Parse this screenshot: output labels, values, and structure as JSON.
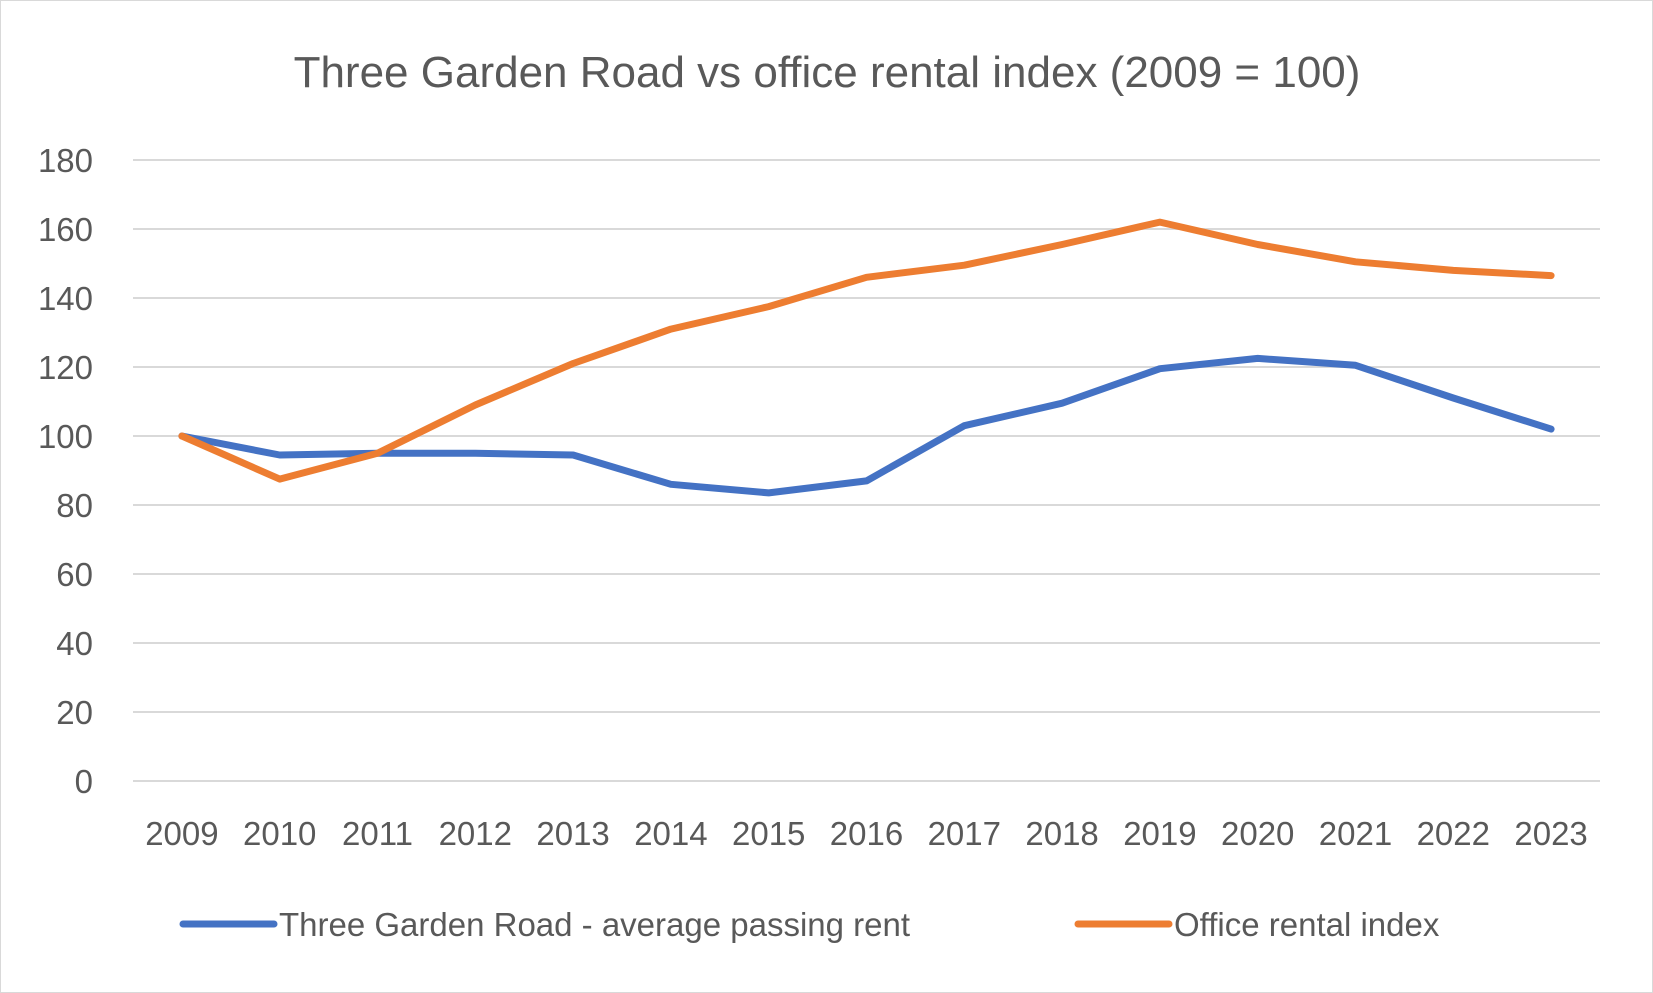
{
  "chart_data": {
    "type": "line",
    "title": "Three Garden Road vs office rental index (2009 = 100)",
    "xlabel": "",
    "ylabel": "",
    "ylim": [
      0,
      180
    ],
    "yticks": [
      0,
      20,
      40,
      60,
      80,
      100,
      120,
      140,
      160,
      180
    ],
    "grid": true,
    "legend_position": "bottom",
    "categories": [
      "2009",
      "2010",
      "2011",
      "2012",
      "2013",
      "2014",
      "2015",
      "2016",
      "2017",
      "2018",
      "2019",
      "2020",
      "2021",
      "2022",
      "2023"
    ],
    "series": [
      {
        "name": "Three Garden Road - average passing rent",
        "color": "#4472c4",
        "values": [
          100,
          94.5,
          95,
          95,
          94.5,
          86,
          83.5,
          87,
          103,
          109.5,
          119.5,
          122.5,
          120.5,
          111,
          102
        ]
      },
      {
        "name": "Office rental index",
        "color": "#ed7d31",
        "values": [
          100,
          87.5,
          95,
          109,
          121,
          131,
          137.5,
          146,
          149.5,
          155.5,
          162,
          155.5,
          150.5,
          148,
          146.5
        ]
      }
    ]
  }
}
